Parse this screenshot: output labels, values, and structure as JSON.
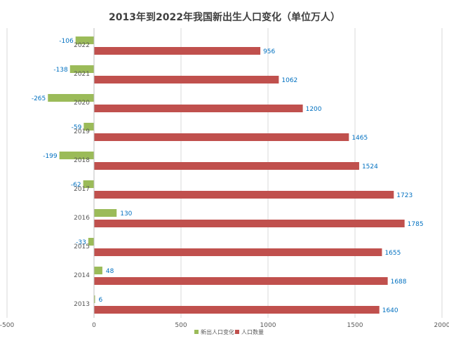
{
  "chart_data": {
    "type": "bar",
    "orientation": "horizontal",
    "title": "2013年到2022年我国新出生人口变化（单位万人）",
    "categories": [
      "2013",
      "2014",
      "2015",
      "2016",
      "2017",
      "2018",
      "2019",
      "2020",
      "2021",
      "2022"
    ],
    "series": [
      {
        "name": "新出人口变化",
        "color": "#9bbb59",
        "values": [
          6,
          48,
          -33,
          130,
          -62,
          -199,
          -59,
          -265,
          -138,
          -106
        ]
      },
      {
        "name": "人口数量",
        "color": "#c0504d",
        "values": [
          1640,
          1688,
          1655,
          1785,
          1723,
          1524,
          1465,
          1200,
          1062,
          956
        ]
      }
    ],
    "xlim": [
      -500,
      2000
    ],
    "xticks": [
      "-500",
      "0",
      "500",
      "1000",
      "1500",
      "2000"
    ],
    "grid": true,
    "legend": "bottom-center",
    "label_color": "#0070c0"
  }
}
